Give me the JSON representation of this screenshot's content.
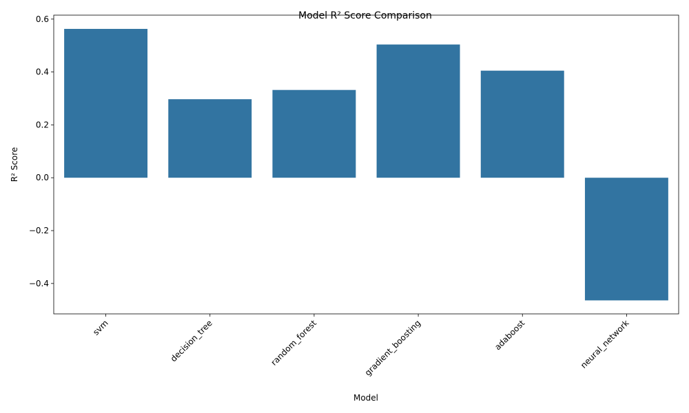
{
  "chart_data": {
    "type": "bar",
    "title": "Model R² Score Comparison",
    "xlabel": "Model",
    "ylabel": "R² Score",
    "categories": [
      "svm",
      "decision_tree",
      "random_forest",
      "gradient_boosting",
      "adaboost",
      "neural_network"
    ],
    "values": [
      0.563,
      0.297,
      0.332,
      0.504,
      0.405,
      -0.464
    ],
    "ylim": [
      -0.515,
      0.615
    ],
    "yticks": [
      -0.4,
      -0.2,
      0.0,
      0.2,
      0.4,
      0.6
    ],
    "ytick_labels": [
      "−0.4",
      "−0.2",
      "0.0",
      "0.2",
      "0.4",
      "0.6"
    ],
    "bar_color": "#3274a1",
    "grid": false,
    "legend": "none",
    "xtick_rotation_deg": 45
  }
}
